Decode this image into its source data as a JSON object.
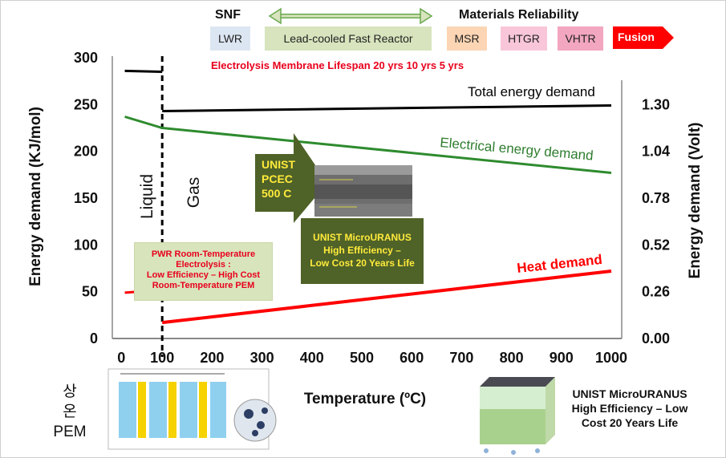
{
  "header": {
    "snf_label": "SNF",
    "materials_label": "Materials Reliability",
    "scale": [
      {
        "label": "LWR",
        "color": "#dce6f2"
      },
      {
        "label": "Lead-cooled Fast Reactor",
        "color": "#d7e4bd"
      },
      {
        "label": "MSR",
        "color": "#fcd5b4"
      },
      {
        "label": "HTGR",
        "color": "#f9c6d9"
      },
      {
        "label": "VHTR",
        "color": "#f2a6c0"
      },
      {
        "label": "Fusion",
        "color": "#ff0000"
      }
    ],
    "lifespan_text": "Electrolysis Membrane Lifespan 20 yrs 10 yrs 5 yrs"
  },
  "chart_data": {
    "type": "line",
    "xlabel": "Temperature (ºC)",
    "ylabel": "Energy demand (KJ/mol)",
    "ylabel_right": "Energy demand (Volt)",
    "xlim": [
      0,
      1000
    ],
    "ylim": [
      0,
      300
    ],
    "x_ticks": [
      "100",
      "200",
      "300",
      "400",
      "500",
      "600",
      "700",
      "800",
      "900",
      "1000"
    ],
    "x_tick_zero": "0",
    "y_ticks": [
      "0",
      "50",
      "100",
      "150",
      "200",
      "250",
      "300"
    ],
    "y_ticks_right": [
      "0.00",
      "0.26",
      "0.52",
      "0.78",
      "1.04",
      "1.30"
    ],
    "phase_boundary_x": 100,
    "phase_labels": {
      "liquid": "Liquid",
      "gas": "Gas"
    },
    "series": [
      {
        "name": "Total energy demand",
        "color": "#000000",
        "segments": [
          [
            [
              25,
              286
            ],
            [
              100,
              285
            ]
          ],
          [
            [
              100,
              243
            ],
            [
              1000,
              249
            ]
          ]
        ]
      },
      {
        "name": "Electrical energy demand",
        "color": "#2e8b2e",
        "segments": [
          [
            [
              25,
              237
            ],
            [
              100,
              225
            ],
            [
              1000,
              177
            ]
          ]
        ]
      },
      {
        "name": "Heat demand",
        "color": "#ff0000",
        "segments": [
          [
            [
              25,
              49
            ],
            [
              100,
              52
            ]
          ],
          [
            [
              100,
              17
            ],
            [
              1000,
              72
            ]
          ]
        ]
      }
    ]
  },
  "annotations": {
    "pwr_box": [
      "PWR Room-Temperature",
      "Electrolysis :",
      "Low Efficiency – High Cost",
      "Room-Temperature PEM"
    ],
    "pcec_arrow": [
      "UNIST",
      "PCEC",
      "500 C"
    ],
    "microuranus_box": [
      "UNIST MicroURANUS",
      "High Efficiency –",
      "Low Cost 20 Years Life"
    ],
    "bottom_right": [
      "UNIST MicroURANUS",
      "High Efficiency – Low",
      "Cost 20 Years Life"
    ],
    "korean_label": [
      "상",
      "온",
      "PEM"
    ]
  }
}
